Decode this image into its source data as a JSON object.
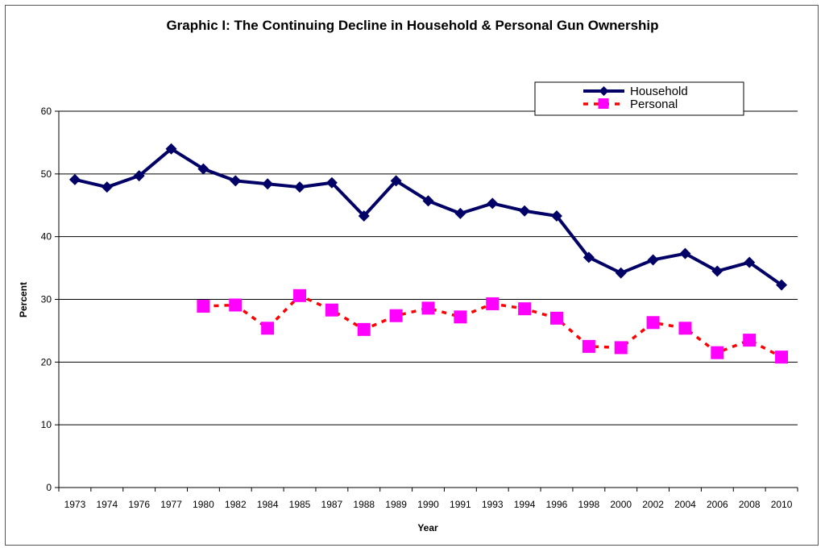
{
  "chart_data": {
    "type": "line",
    "title": "Graphic I:  The Continuing Decline in Household & Personal Gun Ownership",
    "xlabel": "Year",
    "ylabel": "Percent",
    "ylim": [
      0,
      60
    ],
    "yticks": [
      0,
      10,
      20,
      30,
      40,
      50,
      60
    ],
    "grid": "horizontal",
    "legend_position": "top-right",
    "categories": [
      "1973",
      "1974",
      "1976",
      "1977",
      "1980",
      "1982",
      "1984",
      "1985",
      "1987",
      "1988",
      "1989",
      "1990",
      "1991",
      "1993",
      "1994",
      "1996",
      "1998",
      "2000",
      "2002",
      "2004",
      "2006",
      "2008",
      "2010"
    ],
    "series": [
      {
        "name": "Household",
        "color": "#000066",
        "style": "solid-line-diamond",
        "values": [
          49.1,
          47.9,
          49.7,
          54.0,
          50.8,
          48.9,
          48.4,
          47.9,
          48.6,
          43.3,
          48.9,
          45.7,
          43.7,
          45.3,
          44.1,
          43.3,
          36.7,
          34.2,
          36.3,
          37.3,
          34.5,
          35.9,
          32.3
        ]
      },
      {
        "name": "Personal",
        "color": "#ff00ff",
        "line_color": "#ff0000",
        "style": "dashed-line-square",
        "values": [
          null,
          null,
          null,
          null,
          28.9,
          29.1,
          25.4,
          30.6,
          28.3,
          25.2,
          27.4,
          28.6,
          27.2,
          29.3,
          28.5,
          27.0,
          22.5,
          22.3,
          26.3,
          25.4,
          21.5,
          23.5,
          20.8
        ]
      }
    ]
  }
}
